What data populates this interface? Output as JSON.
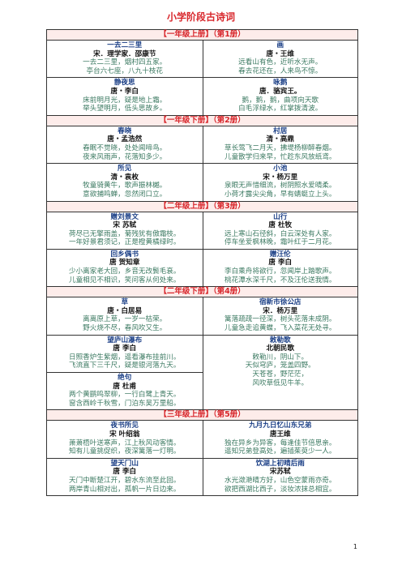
{
  "title": "小学阶段古诗词",
  "sections": [
    {
      "header": "【一年级上册】（第1册）",
      "rows": [
        [
          {
            "title": "一去二三里",
            "author": "宋．理学家．邵康节",
            "lines": [
              "一去二三里，烟村四五家。",
              "亭台六七座，八九十枝花"
            ]
          },
          {
            "title": "画",
            "author": "唐・王维",
            "lines": [
              "远看山有色，近听水无声。",
              "春去花还在，人来鸟不惊。"
            ]
          }
        ],
        [
          {
            "title": "静夜思",
            "author": "唐・李白",
            "lines": [
              "床前明月光，疑是地上霜。",
              "举头望明月，低头思故乡。"
            ]
          },
          {
            "title": "咏鹅",
            "author": "唐．骆宾王。",
            "lines": [
              "鹅，鹅，鹅，曲项向天歌",
              "白毛浮绿水，红掌拨清波。"
            ]
          }
        ]
      ]
    },
    {
      "header": "【一年级下册】（第2册）",
      "rows": [
        [
          {
            "title": "春晓",
            "author": "唐・孟浩然",
            "lines": [
              "春眠不觉晓，处处闻啼鸟。",
              "夜来风雨声，花落知多少。"
            ]
          },
          {
            "title": "村居",
            "author": "清・高鼎",
            "lines": [
              "草长莺飞二月天，拂堤杨柳醉春烟。",
              "儿童散学归来早，忙趁东风放纸鸢。"
            ]
          }
        ],
        [
          {
            "title": "所见",
            "author": "清・袁枚",
            "lines": [
              "牧童骑黄牛，歌声振林樾。",
              "意欲捕鸣蝉，忽然闭口立。"
            ]
          },
          {
            "title": "小池",
            "author": "宋・杨万里",
            "lines": [
              "泉眼无声惜细流，树阴照水爱晴柔。",
              "小荷才露尖尖角，早有蜻蜓立上头。"
            ]
          }
        ]
      ]
    },
    {
      "header": "【二年级上册】（第3册）",
      "rows": [
        [
          {
            "title": "赠刘景文",
            "author": "宋 苏轼",
            "lines": [
              "荷尽已无擎雨盖，菊残犹有傲霜枝。",
              "一年好景君须记，正是橙黄橘绿时。"
            ]
          },
          {
            "title": "山行",
            "author": "唐 杜牧",
            "lines": [
              "远上寒山石径斜，白云深处有人家。",
              "停车坐爱枫林晚，霜叶红于二月花。"
            ]
          }
        ],
        [
          {
            "title": "回乡偶书",
            "author": "唐 贺知章",
            "lines": [
              "少小离家老大回，乡音无改鬓毛衰。",
              "儿童相见不相识，笑问客从何处来。"
            ]
          },
          {
            "title": "赠汪伦",
            "author": "唐 李白",
            "lines": [
              "李白乘舟将欲行，忽闻岸上踏歌声。",
              "桃花潭水深千尺，不及汪伦送我情。"
            ]
          }
        ]
      ]
    },
    {
      "header": "【二年级下册】（第4册）",
      "rows": [
        [
          {
            "title": "草",
            "author": "唐・白居易",
            "lines": [
              "离离原上草，一岁一枯荣。",
              "野火烧不尽，春风吹又生。"
            ]
          },
          {
            "title": "宿新市徐公店",
            "author": "宋．杨万里",
            "lines": [
              "篱落疏疏一径深，树头花落未成阴。",
              "儿童急走追黄蝶，飞入菜花无处寻。"
            ]
          }
        ],
        [
          {
            "title": "望庐山瀑布",
            "author": "唐 李白",
            "lines": [
              "日照香炉生紫烟，遥看瀑布挂前川。",
              "飞流直下三千尺，疑是银河落九天。"
            ]
          },
          {
            "title": "敕勒歌",
            "author": "北朝民歌",
            "lines": [
              "敕勒川，阴山下。",
              "天似穹庐，笼盖四野。",
              "天苍苍，野茫茫，",
              "风吹草低见牛羊。"
            ]
          }
        ],
        [
          {
            "title": "绝句",
            "author": "唐 杜甫",
            "lines": [
              "两个黄鹂鸣翠柳，一行白鹭上青天。",
              "窗含西岭千秋雪，门泊东吴万里船。"
            ]
          }
        ]
      ]
    },
    {
      "header": "【三年级上册】（第5册）",
      "rows": [
        [
          {
            "title": "夜书所见",
            "author": "宋 叶绍翁",
            "lines": [
              "萧萧梧叶送寒声，江上秋风动客情。",
              "知有儿童挑促织，夜深篱落一灯明。"
            ]
          },
          {
            "title": "九月九日忆山东兄弟",
            "author": "唐王维",
            "lines": [
              "独在异乡为异客，每逢佳节倍思亲。",
              "遥知兄弟登高处，遍插茱萸少一人。"
            ]
          }
        ],
        [
          {
            "title": "望天门山",
            "author": "唐 李白",
            "lines": [
              "天门中断楚江开，碧水东流至此回。",
              "两岸青山相对出，孤帆一片日边来。"
            ]
          },
          {
            "title": "饮湖上初晴后雨",
            "author": "宋苏轼",
            "lines": [
              "水光潋滟晴方好，山色空蒙雨亦奇。",
              "欲把西湖比西子，淡妆浓抹总相宜。"
            ]
          }
        ]
      ]
    }
  ],
  "page_number": "1"
}
